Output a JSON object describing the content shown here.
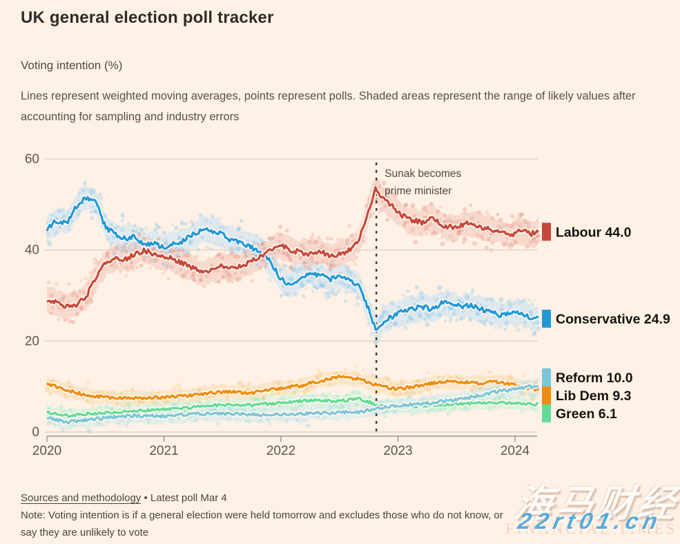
{
  "page": {
    "background": "#FFF1E5"
  },
  "header": {
    "title": "UK general election poll tracker",
    "subtitle": "Voting intention (%)",
    "description": "Lines represent weighted moving averages, points represent polls. Shaded areas represent the range of likely values after accounting for sampling and industry errors"
  },
  "chart_data": {
    "type": "line",
    "title": "Voting intention (%)",
    "grid": true,
    "x_axis": {
      "ticks": [
        2020,
        2021,
        2022,
        2023,
        2024
      ],
      "range": [
        2020,
        2024.25
      ]
    },
    "y_axis": {
      "ticks": [
        0,
        20,
        40,
        60
      ],
      "range": [
        0,
        60
      ]
    },
    "annotation": {
      "x": 2022.815,
      "lines": [
        "Sunak becomes",
        "prime minister"
      ]
    },
    "series": [
      {
        "name": "Labour",
        "label": "Labour 44.0",
        "latest": 44.0,
        "color": "#C8473A",
        "dot_color": "#E08F7E",
        "band_color": "#F1C1B6",
        "band": 2.7,
        "noise": 0.55,
        "seed": 11,
        "x": [
          2020.0,
          2020.08,
          2020.17,
          2020.25,
          2020.33,
          2020.42,
          2020.5,
          2020.58,
          2020.67,
          2020.75,
          2020.83,
          2020.92,
          2021.0,
          2021.08,
          2021.17,
          2021.25,
          2021.33,
          2021.42,
          2021.5,
          2021.58,
          2021.67,
          2021.75,
          2021.83,
          2021.92,
          2022.0,
          2022.08,
          2022.17,
          2022.25,
          2022.33,
          2022.42,
          2022.5,
          2022.58,
          2022.67,
          2022.75,
          2022.81,
          2022.88,
          2022.96,
          2023.04,
          2023.13,
          2023.21,
          2023.29,
          2023.38,
          2023.46,
          2023.54,
          2023.63,
          2023.71,
          2023.79,
          2023.88,
          2023.96,
          2024.04,
          2024.13,
          2024.2
        ],
        "y": [
          29,
          28.5,
          27.5,
          28,
          29.5,
          34,
          37,
          38,
          38,
          39,
          40,
          39,
          38.5,
          38,
          37,
          36,
          35,
          35.5,
          36.5,
          36,
          36.5,
          37.5,
          38.5,
          40,
          41,
          40,
          39.5,
          39,
          40,
          38.5,
          39,
          40,
          42.5,
          49,
          53.5,
          51,
          49.5,
          47.5,
          46.5,
          46,
          47,
          45.5,
          45,
          45.5,
          46,
          45,
          44.5,
          44,
          43,
          44.5,
          43.5,
          44
        ]
      },
      {
        "name": "Conservative",
        "label": "Conservative 24.9",
        "latest": 24.9,
        "color": "#1F98DA",
        "dot_color": "#7CC3EA",
        "band_color": "#BFE0F5",
        "band": 2.7,
        "noise": 0.55,
        "seed": 22,
        "x": [
          2020.0,
          2020.08,
          2020.17,
          2020.25,
          2020.33,
          2020.42,
          2020.5,
          2020.58,
          2020.67,
          2020.75,
          2020.83,
          2020.92,
          2021.0,
          2021.08,
          2021.17,
          2021.25,
          2021.33,
          2021.42,
          2021.5,
          2021.58,
          2021.67,
          2021.75,
          2021.83,
          2021.92,
          2022.0,
          2022.08,
          2022.17,
          2022.25,
          2022.33,
          2022.42,
          2022.5,
          2022.58,
          2022.67,
          2022.75,
          2022.81,
          2022.88,
          2022.96,
          2023.04,
          2023.13,
          2023.21,
          2023.29,
          2023.38,
          2023.46,
          2023.54,
          2023.63,
          2023.71,
          2023.79,
          2023.88,
          2023.96,
          2024.04,
          2024.13,
          2024.2
        ],
        "y": [
          44.5,
          46.5,
          46,
          49.5,
          51.5,
          50.5,
          45,
          43.5,
          42.5,
          43,
          41,
          41.5,
          40.5,
          41.5,
          42,
          43.5,
          44.5,
          44,
          43.5,
          42,
          41.5,
          40.5,
          39.5,
          37,
          33.5,
          32.5,
          34,
          35,
          34.5,
          33.5,
          34.5,
          33.5,
          32,
          27,
          22.5,
          24.5,
          25.5,
          26.5,
          27,
          27.5,
          27,
          28.5,
          28,
          27.5,
          28,
          27,
          26.5,
          25.5,
          26,
          26.5,
          25,
          24.9
        ]
      },
      {
        "name": "Reform",
        "label": "Reform 10.0",
        "latest": 10.0,
        "color": "#7BC6D6",
        "dot_color": "#A3D8E2",
        "band_color": "#CDE9EE",
        "band": 1.5,
        "noise": 0.35,
        "seed": 33,
        "x": [
          2020.0,
          2020.17,
          2020.33,
          2020.5,
          2020.75,
          2021.0,
          2021.25,
          2021.5,
          2021.75,
          2022.0,
          2022.25,
          2022.5,
          2022.67,
          2022.83,
          2023.0,
          2023.17,
          2023.33,
          2023.5,
          2023.67,
          2023.83,
          2024.0,
          2024.1,
          2024.2
        ],
        "y": [
          3.2,
          2.2,
          2.6,
          3.1,
          3.6,
          3.5,
          3.9,
          4.1,
          3.8,
          3.9,
          4.1,
          4.3,
          4.4,
          5.2,
          5.8,
          6.1,
          6.6,
          7.1,
          7.9,
          8.8,
          9.4,
          9.9,
          10.0
        ]
      },
      {
        "name": "Lib Dem",
        "label": "Lib Dem 9.3",
        "latest": 9.3,
        "color": "#EE8C0F",
        "dot_color": "#F5BE6E",
        "band_color": "#F8DCAE",
        "band": 1.5,
        "noise": 0.35,
        "seed": 44,
        "x": [
          2020.0,
          2020.17,
          2020.33,
          2020.5,
          2020.75,
          2021.0,
          2021.25,
          2021.5,
          2021.75,
          2022.0,
          2022.17,
          2022.33,
          2022.5,
          2022.67,
          2022.83,
          2023.0,
          2023.17,
          2023.33,
          2023.5,
          2023.67,
          2023.83,
          2024.0,
          2024.1,
          2024.2
        ],
        "y": [
          10.5,
          9.2,
          8.1,
          7.6,
          7.4,
          7.6,
          8.1,
          8.9,
          8.6,
          9.6,
          10.2,
          11.2,
          12.1,
          11.6,
          10.2,
          9.4,
          10.1,
          10.9,
          11.1,
          10.7,
          11,
          10.3,
          9.6,
          9.3
        ]
      },
      {
        "name": "Green",
        "label": "Green 6.1",
        "latest": 6.1,
        "color": "#62DB95",
        "dot_color": "#9AE9B9",
        "band_color": "#C8F3DA",
        "band": 1.4,
        "noise": 0.3,
        "seed": 55,
        "x": [
          2020.0,
          2020.17,
          2020.33,
          2020.5,
          2020.75,
          2021.0,
          2021.25,
          2021.5,
          2021.75,
          2022.0,
          2022.25,
          2022.5,
          2022.67,
          2022.83,
          2023.0,
          2023.25,
          2023.5,
          2023.75,
          2024.0,
          2024.2
        ],
        "y": [
          4.3,
          3.6,
          4,
          4.2,
          4.6,
          5,
          5.4,
          5.9,
          5.9,
          6.4,
          7,
          6.8,
          7.3,
          5.9,
          5.5,
          5.8,
          6.1,
          6.5,
          6.4,
          6.1
        ]
      }
    ],
    "colors": {
      "grid": "#D8CBC0",
      "axis": "#8A827B",
      "tick_text": "#5D564F",
      "annotation_text": "#4D4844",
      "legend_text": "#15120F"
    }
  },
  "footer": {
    "sources_label": "Sources and methodology",
    "separator": "•",
    "latest_label": "Latest poll Mar 4",
    "note": "Note: Voting intention is if a general election were held tomorrow and excludes those who do not know, or say they are unlikely to vote"
  },
  "watermark": {
    "main": "海马财经",
    "sub": "FINANCIAL TIMES",
    "url": "22rt01.cn"
  }
}
